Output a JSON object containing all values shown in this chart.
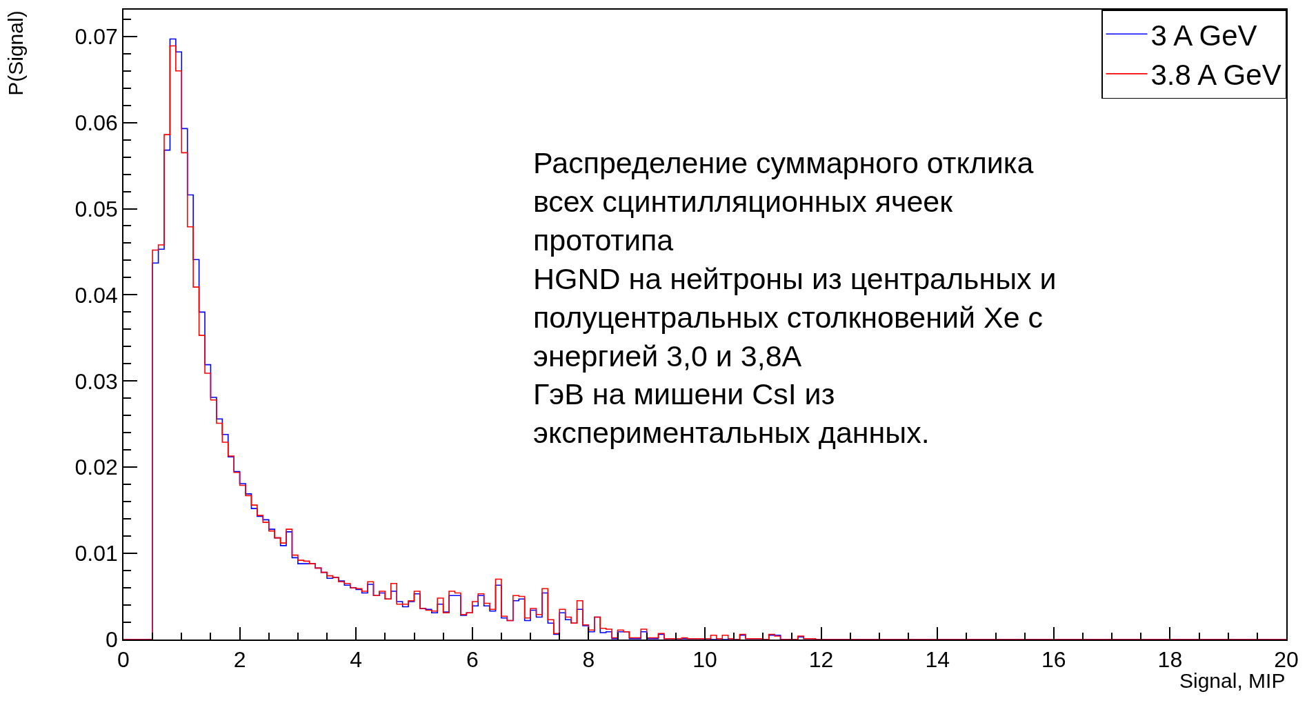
{
  "chart_data": {
    "type": "histogram",
    "xlabel": "Signal, MIP",
    "ylabel": "P(Signal)",
    "bins": [
      0,
      0.1,
      0.2,
      0.3,
      0.4,
      0.5,
      0.6,
      0.7,
      0.8,
      0.9,
      1,
      1.1,
      1.2,
      1.3,
      1.4,
      1.5,
      1.6,
      1.7,
      1.8,
      1.9,
      2,
      2.1,
      2.2,
      2.3,
      2.4,
      2.5,
      2.6,
      2.7,
      2.8,
      2.9,
      3,
      3.1,
      3.2,
      3.3,
      3.4,
      3.5,
      3.6,
      3.7,
      3.8,
      3.9,
      4,
      4.1,
      4.2,
      4.3,
      4.4,
      4.5,
      4.6,
      4.7,
      4.8,
      4.9,
      5,
      5.1,
      5.2,
      5.3,
      5.4,
      5.5,
      5.6,
      5.7,
      5.8,
      5.9,
      6,
      6.1,
      6.2,
      6.3,
      6.4,
      6.5,
      6.6,
      6.7,
      6.8,
      6.9,
      7,
      7.1,
      7.2,
      7.3,
      7.4,
      7.5,
      7.6,
      7.7,
      7.8,
      7.9,
      8,
      8.1,
      8.2,
      8.3,
      8.4,
      8.5,
      8.6,
      8.7,
      8.8,
      8.9,
      9,
      9.1,
      9.2,
      9.3,
      9.4,
      9.5,
      9.6,
      9.7,
      9.8,
      9.9,
      10,
      10.1,
      10.2,
      10.3,
      10.4,
      10.5,
      10.6,
      10.7,
      10.8,
      10.9,
      11,
      11.1,
      11.2,
      11.3,
      11.4,
      11.5,
      11.6,
      11.7,
      11.8,
      11.9,
      12,
      12.1,
      12.2,
      12.3,
      12.4,
      12.5,
      12.6,
      12.7,
      12.8,
      12.9,
      13,
      13.1,
      13.2,
      13.3,
      13.4,
      13.5,
      13.6,
      13.7,
      13.8,
      13.9,
      14,
      14.1,
      14.2,
      14.3,
      14.4,
      14.5,
      14.6,
      14.7,
      14.8,
      14.9,
      15,
      15.1,
      15.2,
      15.3,
      15.4,
      15.5,
      15.6,
      15.7,
      15.8,
      15.9,
      16,
      16.1,
      16.2,
      16.3,
      16.4,
      16.5,
      16.6,
      16.7,
      16.8,
      16.9,
      17,
      17.1,
      17.2,
      17.3,
      17.4,
      17.5,
      17.6,
      17.7,
      17.8,
      17.9,
      18,
      18.1,
      18.2,
      18.3,
      18.4,
      18.5,
      18.6,
      18.7,
      18.8,
      18.9,
      19,
      19.1,
      19.2,
      19.3,
      19.4,
      19.5,
      19.6,
      19.7,
      19.8,
      19.9,
      20
    ],
    "series": [
      {
        "name": "3 A GeV",
        "color": "#0000ff",
        "values": [
          0,
          0,
          0,
          0,
          0,
          0.0437,
          0.0453,
          0.0568,
          0.0697,
          0.0682,
          0.0593,
          0.0516,
          0.0441,
          0.038,
          0.0319,
          0.0281,
          0.0256,
          0.0238,
          0.0212,
          0.0195,
          0.0181,
          0.0169,
          0.0152,
          0.0143,
          0.0139,
          0.0128,
          0.0118,
          0.0109,
          0.0125,
          0.0095,
          0.0088,
          0.0088,
          0.0088,
          0.0083,
          0.0078,
          0.0071,
          0.0072,
          0.0068,
          0.0063,
          0.006,
          0.0058,
          0.0054,
          0.0064,
          0.0051,
          0.0054,
          0.0047,
          0.0056,
          0.0044,
          0.0038,
          0.0044,
          0.0053,
          0.0036,
          0.0035,
          0.0031,
          0.0041,
          0.0032,
          0.0051,
          0.0051,
          0.0028,
          0.0031,
          0.0039,
          0.0051,
          0.0039,
          0.0033,
          0.0063,
          0.0025,
          0.0022,
          0.0045,
          0.0047,
          0.0022,
          0.0034,
          0.0026,
          0.0054,
          0.0019,
          0.0006,
          0.0031,
          0.0023,
          0.0019,
          0.0035,
          0.0016,
          0.0009,
          0.0026,
          0.0008,
          0.0009,
          0.0001,
          0.0009,
          0.0009,
          0.0001,
          0.0001,
          0.0009,
          0.0001,
          0.0001,
          0.0006,
          0.0001,
          0.0001,
          0.0001,
          0.0001,
          0.0001,
          0.0001,
          0.0001,
          0.0001,
          0,
          0.0001,
          0,
          0.0001,
          0,
          0.0005,
          0.0001,
          0.0001,
          0.0001,
          0,
          0.0005,
          0.0005,
          0,
          0,
          0,
          0.0003,
          0.0001,
          0.0001,
          0,
          0,
          0,
          0,
          0,
          0,
          0,
          0,
          0,
          0,
          0,
          0,
          0,
          0,
          0,
          0,
          0,
          0,
          0,
          0,
          0,
          0,
          0,
          0,
          0,
          0,
          0,
          0,
          0,
          0,
          0,
          0,
          0,
          0,
          0,
          0,
          0,
          0,
          0,
          0,
          0,
          0,
          0,
          0,
          0,
          0,
          0,
          0,
          0,
          0,
          0,
          0,
          0,
          0,
          0,
          0,
          0,
          0,
          0,
          0,
          0,
          0,
          0,
          0,
          0,
          0,
          0,
          0,
          0,
          0,
          0,
          0,
          0,
          0,
          0,
          0,
          0,
          0,
          0,
          0,
          0
        ]
      },
      {
        "name": "3.8 A GeV",
        "color": "#ff0000",
        "values": [
          0,
          0,
          0,
          0,
          0,
          0.0452,
          0.0458,
          0.0586,
          0.0689,
          0.066,
          0.0565,
          0.0479,
          0.0409,
          0.0353,
          0.0309,
          0.0278,
          0.0251,
          0.0229,
          0.0213,
          0.0194,
          0.0179,
          0.0167,
          0.0156,
          0.0144,
          0.0136,
          0.0126,
          0.0118,
          0.0112,
          0.0128,
          0.0098,
          0.0092,
          0.0091,
          0.0088,
          0.0083,
          0.0078,
          0.0074,
          0.0072,
          0.0067,
          0.0065,
          0.006,
          0.0059,
          0.0056,
          0.0067,
          0.0051,
          0.0056,
          0.0047,
          0.0065,
          0.0041,
          0.0041,
          0.0045,
          0.0056,
          0.0036,
          0.0034,
          0.0033,
          0.0048,
          0.0031,
          0.0056,
          0.0054,
          0.0029,
          0.0031,
          0.0044,
          0.0053,
          0.0042,
          0.0035,
          0.007,
          0.0027,
          0.0022,
          0.0051,
          0.005,
          0.0025,
          0.0036,
          0.0029,
          0.0059,
          0.0023,
          0.0007,
          0.0035,
          0.0026,
          0.0019,
          0.0045,
          0.0017,
          0.0011,
          0.0026,
          0.0013,
          0.0012,
          0.0002,
          0.0011,
          0.0009,
          0.0002,
          0.0002,
          0.0012,
          0.0002,
          0.0002,
          0.0007,
          0.0001,
          0.0001,
          0.0001,
          0.0002,
          0.0001,
          0.0001,
          0.0001,
          0.0001,
          0.0005,
          0.0001,
          0.0005,
          0.0001,
          0,
          0.0006,
          0.0001,
          0.0001,
          0.0001,
          0,
          0.0006,
          0.0004,
          0,
          0,
          0,
          0.0004,
          0.0001,
          0.0001,
          0,
          0,
          0,
          0,
          0,
          0,
          0,
          0,
          0,
          0,
          0,
          0,
          0,
          0,
          0,
          0,
          0,
          0,
          0,
          0,
          0,
          0,
          0,
          0,
          0,
          0,
          0,
          0,
          0,
          0,
          0,
          0,
          0,
          0,
          0,
          0,
          0,
          0,
          0,
          0,
          0,
          0,
          0,
          0,
          0,
          0,
          0,
          0,
          0,
          0,
          0,
          0,
          0,
          0,
          0,
          0,
          0,
          0,
          0,
          0,
          0,
          0,
          0,
          0,
          0,
          0,
          0,
          0,
          0,
          0,
          0,
          0,
          0,
          0,
          0,
          0,
          0,
          0,
          0,
          0,
          0
        ]
      }
    ],
    "xlim": [
      0,
      20
    ],
    "xticks": [
      0,
      2,
      4,
      6,
      8,
      10,
      12,
      14,
      16,
      18,
      20
    ],
    "ylim": [
      0,
      0.0731
    ],
    "yticks": [
      0,
      0.01,
      0.02,
      0.03,
      0.04,
      0.05,
      0.06,
      0.07
    ],
    "legend": "top right",
    "annotations": [
      "Распределение суммарного отклика\nвсех сцинтилляционных ячеек\nпрототипа\nHGND на нейтроны из центральных и\nполуцентральных столкновений Xe с\nэнергией 3,0 и 3,8А\nГэВ на мишени CsI из\nэкспериментальных данных."
    ]
  }
}
